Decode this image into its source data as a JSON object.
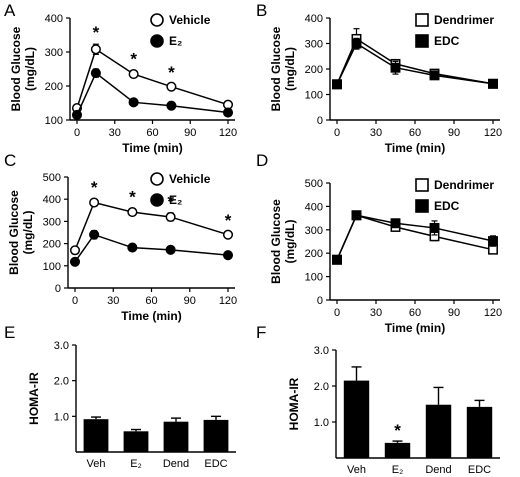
{
  "chart_data": [
    {
      "panel": "A",
      "type": "line",
      "ylabel": "Blood Glucose (mg/dL)",
      "xlabel": "Time (min)",
      "x": [
        0,
        15,
        45,
        75,
        120
      ],
      "xticks": [
        "0",
        "30",
        "60",
        "90",
        "120"
      ],
      "yticks": [
        "100",
        "200",
        "300",
        "400"
      ],
      "ylim": [
        100,
        400
      ],
      "legend_position": "top-right",
      "series": [
        {
          "name": "Vehicle",
          "marker": "open-circle",
          "values": [
            135,
            308,
            235,
            198,
            145
          ],
          "err": [
            8,
            15,
            10,
            8,
            6
          ]
        },
        {
          "name": "E₂",
          "marker": "filled-circle",
          "values": [
            115,
            238,
            152,
            142,
            122
          ],
          "err": [
            6,
            12,
            6,
            6,
            8
          ]
        }
      ],
      "significance": [
        {
          "x": 15,
          "label": "*"
        },
        {
          "x": 45,
          "label": "*"
        },
        {
          "x": 75,
          "label": "*"
        }
      ]
    },
    {
      "panel": "B",
      "type": "line",
      "ylabel": "Blood Glucose (mg/dL)",
      "xlabel": "Time (min)",
      "x": [
        0,
        15,
        45,
        75,
        120
      ],
      "xticks": [
        "0",
        "30",
        "60",
        "90",
        "120"
      ],
      "yticks": [
        "0",
        "100",
        "200",
        "300",
        "400"
      ],
      "ylim": [
        0,
        400
      ],
      "legend_position": "top-right",
      "series": [
        {
          "name": "Dendrimer",
          "marker": "open-square",
          "values": [
            140,
            318,
            220,
            182,
            142
          ],
          "err": [
            6,
            40,
            12,
            10,
            6
          ]
        },
        {
          "name": "EDC",
          "marker": "filled-square",
          "values": [
            140,
            300,
            205,
            175,
            142
          ],
          "err": [
            6,
            20,
            25,
            12,
            6
          ]
        }
      ],
      "significance": []
    },
    {
      "panel": "C",
      "type": "line",
      "ylabel": "Blood Glucose (mg/dL)",
      "xlabel": "Time (min)",
      "x": [
        0,
        15,
        45,
        75,
        120
      ],
      "xticks": [
        "0",
        "30",
        "60",
        "90",
        "120"
      ],
      "yticks": [
        "0",
        "100",
        "200",
        "300",
        "400",
        "500"
      ],
      "ylim": [
        0,
        500
      ],
      "legend_position": "top-right",
      "series": [
        {
          "name": "Vehicle",
          "marker": "open-circle",
          "values": [
            170,
            385,
            342,
            320,
            240
          ],
          "err": [
            8,
            15,
            15,
            18,
            12
          ]
        },
        {
          "name": "E₂",
          "marker": "filled-circle",
          "values": [
            118,
            240,
            182,
            172,
            148
          ],
          "err": [
            8,
            18,
            12,
            10,
            8
          ]
        }
      ],
      "significance": [
        {
          "x": 15,
          "label": "*"
        },
        {
          "x": 45,
          "label": "*"
        },
        {
          "x": 75,
          "label": "*"
        },
        {
          "x": 120,
          "label": "*"
        }
      ]
    },
    {
      "panel": "D",
      "type": "line",
      "ylabel": "Blood Glucose (mg/dL)",
      "xlabel": "Time (min)",
      "x": [
        0,
        15,
        45,
        75,
        120
      ],
      "xticks": [
        "0",
        "30",
        "60",
        "90",
        "120"
      ],
      "yticks": [
        "0",
        "100",
        "200",
        "300",
        "400",
        "500"
      ],
      "ylim": [
        0,
        500
      ],
      "legend_position": "top-right",
      "series": [
        {
          "name": "Dendrimer",
          "marker": "open-square",
          "values": [
            172,
            362,
            312,
            272,
            215
          ],
          "err": [
            10,
            10,
            12,
            18,
            18
          ]
        },
        {
          "name": "EDC",
          "marker": "filled-square",
          "values": [
            172,
            362,
            328,
            308,
            252
          ],
          "err": [
            10,
            10,
            18,
            30,
            22
          ]
        }
      ],
      "significance": []
    },
    {
      "panel": "E",
      "type": "bar",
      "ylabel": "HOMA-IR",
      "categories": [
        "Veh",
        "E₂",
        "Dend",
        "EDC"
      ],
      "values": [
        0.92,
        0.58,
        0.85,
        0.9
      ],
      "err": [
        0.06,
        0.05,
        0.1,
        0.1
      ],
      "yticks": [
        "1.0",
        "2.0",
        "3.0"
      ],
      "ylim": [
        0,
        3
      ],
      "significance": []
    },
    {
      "panel": "F",
      "type": "bar",
      "ylabel": "HOMA-IR",
      "categories": [
        "Veh",
        "E₂",
        "Dend",
        "EDC"
      ],
      "values": [
        2.15,
        0.42,
        1.48,
        1.42
      ],
      "err": [
        0.38,
        0.05,
        0.48,
        0.18
      ],
      "yticks": [
        "1.0",
        "2.0",
        "3.0"
      ],
      "ylim": [
        0,
        3
      ],
      "significance": [
        {
          "category": "E₂",
          "label": "*"
        }
      ]
    }
  ]
}
